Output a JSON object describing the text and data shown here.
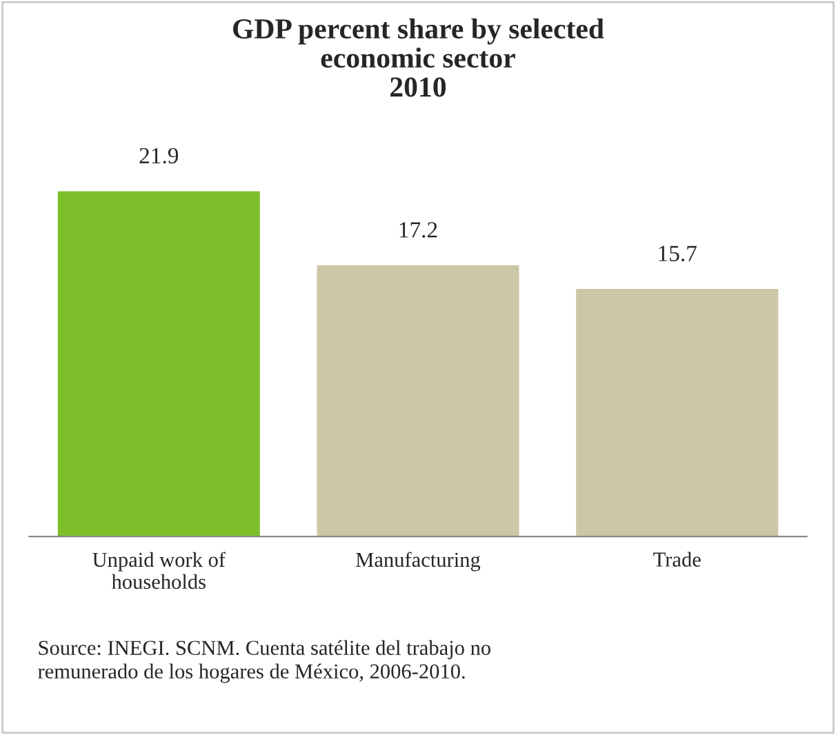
{
  "chart_data": {
    "type": "bar",
    "title": "GDP percent share by selected\neconomic sector\n2010",
    "categories": [
      "Unpaid work of\nhouseholds",
      "Manufacturing",
      "Trade"
    ],
    "values": [
      21.9,
      17.2,
      15.7
    ],
    "colors": [
      "#7cbf2b",
      "#ccc7a4",
      "#ccc7a4"
    ],
    "data_labels": true,
    "grid": false,
    "legend": false,
    "annotations": [
      "Source: INEGI. SCNM. Cuenta satélite del trabajo no\nremunerado de los hogares de México, 2006-2010."
    ]
  }
}
